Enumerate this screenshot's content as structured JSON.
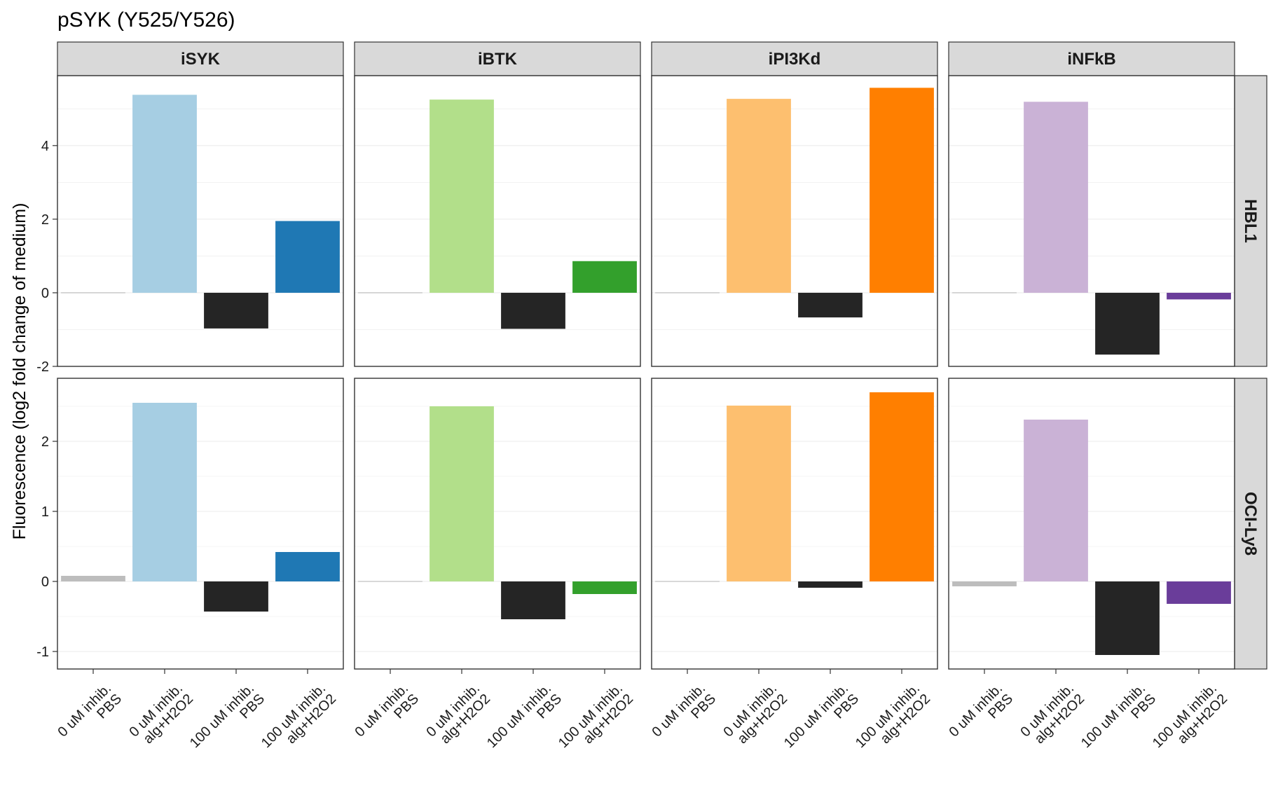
{
  "title": "pSYK (Y525/Y526)",
  "ylabel": "Fluorescence (log2 fold change of medium)",
  "chart_data": {
    "type": "bar",
    "layout": "facet grid (rows: cell line, columns: inhibitor)",
    "title": "pSYK (Y525/Y526)",
    "xlabel": "",
    "ylabel": "Fluorescence (log2 fold change of medium)",
    "grid": true,
    "categories": [
      [
        "0 uM inhib.",
        "PBS"
      ],
      [
        "0 uM inhib.",
        "alg+H2O2"
      ],
      [
        "100 uM inhib.",
        "PBS"
      ],
      [
        "100 uM inhib.",
        "alg+H2O2"
      ]
    ],
    "columns": [
      "iSYK",
      "iBTK",
      "iPI3Kd",
      "iNFkB"
    ],
    "rows": [
      {
        "name": "HBL1",
        "ylim": [
          -2,
          5.9
        ],
        "yticks": [
          -2,
          0,
          2,
          4
        ],
        "ytick_labels": [
          "-2",
          "0",
          "2",
          "4"
        ]
      },
      {
        "name": "OCI-Ly8",
        "ylim": [
          -1.25,
          2.9
        ],
        "yticks": [
          -1,
          0,
          1,
          2
        ],
        "ytick_labels": [
          "-1",
          "0",
          "1",
          "2"
        ]
      }
    ],
    "colors": {
      "iSYK": [
        "#bdbdbd",
        "#a6cee3",
        "#252525",
        "#1f78b4"
      ],
      "iBTK": [
        "#bdbdbd",
        "#b2df8a",
        "#252525",
        "#33a02c"
      ],
      "iPI3Kd": [
        "#bdbdbd",
        "#fdbf6f",
        "#252525",
        "#ff7f00"
      ],
      "iNFkB": [
        "#bdbdbd",
        "#cab2d6",
        "#252525",
        "#6a3d9a"
      ]
    },
    "values": {
      "HBL1": {
        "iSYK": [
          0.0,
          5.38,
          -0.97,
          1.95
        ],
        "iBTK": [
          -0.02,
          5.25,
          -0.98,
          0.86
        ],
        "iPI3Kd": [
          0.0,
          5.27,
          -0.67,
          5.57
        ],
        "iNFkB": [
          0.0,
          5.19,
          -1.68,
          -0.18
        ]
      },
      "OCI-Ly8": {
        "iSYK": [
          0.08,
          2.55,
          -0.43,
          0.42
        ],
        "iBTK": [
          0.01,
          2.5,
          -0.54,
          -0.18
        ],
        "iPI3Kd": [
          -0.01,
          2.51,
          -0.09,
          2.7
        ],
        "iNFkB": [
          -0.07,
          2.31,
          -1.05,
          -0.32
        ]
      }
    }
  }
}
